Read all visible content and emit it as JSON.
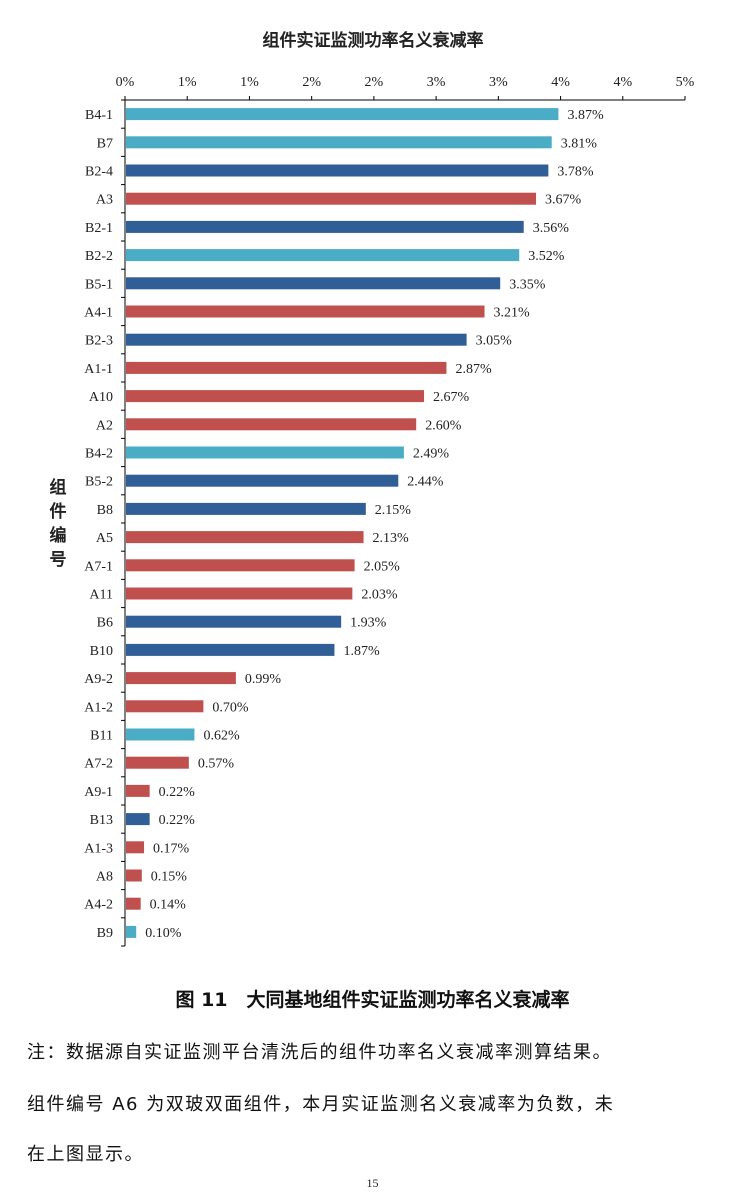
{
  "chart_data": {
    "type": "bar",
    "orientation": "horizontal",
    "title": "组件实证监测功率名义衰减率",
    "ylabel": "组件编号",
    "xlim": [
      0,
      5
    ],
    "x_tick_labels": [
      "0%",
      "1%",
      "1%",
      "2%",
      "2%",
      "3%",
      "3%",
      "4%",
      "4%",
      "5%"
    ],
    "categories": [
      "B4-1",
      "B7",
      "B2-4",
      "A3",
      "B2-1",
      "B2-2",
      "B5-1",
      "A4-1",
      "B2-3",
      "A1-1",
      "A10",
      "A2",
      "B4-2",
      "B5-2",
      "B8",
      "A5",
      "A7-1",
      "A11",
      "B6",
      "B10",
      "A9-2",
      "A1-2",
      "B11",
      "A7-2",
      "A9-1",
      "B13",
      "A1-3",
      "A8",
      "A4-2",
      "B9"
    ],
    "values": [
      3.87,
      3.81,
      3.78,
      3.67,
      3.56,
      3.52,
      3.35,
      3.21,
      3.05,
      2.87,
      2.67,
      2.6,
      2.49,
      2.44,
      2.15,
      2.13,
      2.05,
      2.03,
      1.93,
      1.87,
      0.99,
      0.7,
      0.62,
      0.57,
      0.22,
      0.22,
      0.17,
      0.15,
      0.14,
      0.1
    ],
    "value_labels": [
      "3.87%",
      "3.81%",
      "3.78%",
      "3.67%",
      "3.56%",
      "3.52%",
      "3.35%",
      "3.21%",
      "3.05%",
      "2.87%",
      "2.67%",
      "2.60%",
      "2.49%",
      "2.44%",
      "2.15%",
      "2.13%",
      "2.05%",
      "2.03%",
      "1.93%",
      "1.87%",
      "0.99%",
      "0.70%",
      "0.62%",
      "0.57%",
      "0.22%",
      "0.22%",
      "0.17%",
      "0.15%",
      "0.14%",
      "0.10%"
    ],
    "bar_color_keys": [
      "light",
      "light",
      "dark",
      "red",
      "dark",
      "light",
      "dark",
      "red",
      "dark",
      "red",
      "red",
      "red",
      "light",
      "dark",
      "dark",
      "red",
      "red",
      "red",
      "dark",
      "dark",
      "red",
      "red",
      "light",
      "red",
      "red",
      "dark",
      "red",
      "red",
      "red",
      "light"
    ],
    "colors": {
      "light": "#4bacc6",
      "dark": "#2f5f96",
      "red": "#c0504d"
    },
    "grid": false,
    "legend": "none"
  },
  "caption": "图 11　大同基地组件实证监测功率名义衰减率",
  "note_lines": [
    "注：数据源自实证监测平台清洗后的组件功率名义衰减率测算结果。",
    "组件编号 A6 为双玻双面组件，本月实证监测名义衰减率为负数，未",
    "在上图显示。"
  ],
  "page_number": "15"
}
